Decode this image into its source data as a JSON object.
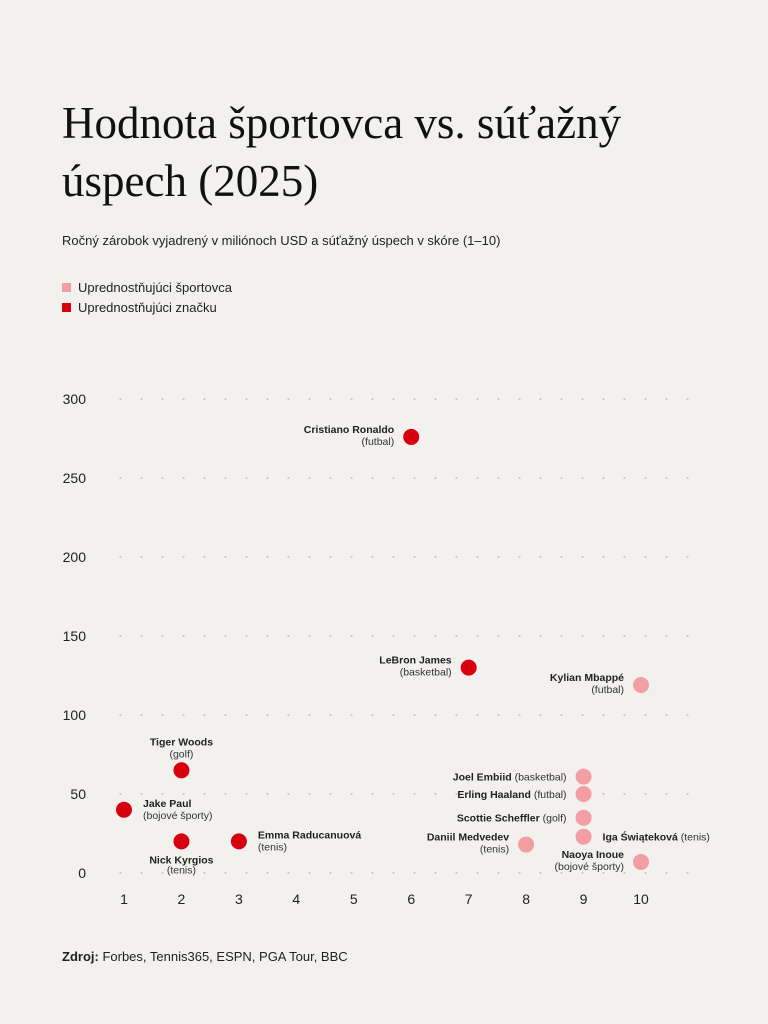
{
  "title": "Hodnota športovca vs. súťažný úspech (2025)",
  "subtitle": "Ročný zárobok vyjadrený v miliónoch USD a súťažný úspech v skóre (1–10)",
  "source": {
    "label": "Zdroj:",
    "text": "Forbes, Tennis365, ESPN, PGA Tour, BBC"
  },
  "colors": {
    "athlete": "#f29ea3",
    "brand": "#d6000f",
    "background": "#f2f1ed"
  },
  "chart_data": {
    "type": "scatter",
    "title": "Hodnota športovca vs. súťažný úspech (2025)",
    "xlabel": "",
    "ylabel": "",
    "xlim": [
      1,
      10
    ],
    "ylim": [
      0,
      300
    ],
    "xticks": [
      1,
      2,
      3,
      4,
      5,
      6,
      7,
      8,
      9,
      10
    ],
    "yticks": [
      0,
      50,
      100,
      150,
      200,
      250,
      300
    ],
    "grid": "dotted horizontal",
    "legend_placement": "top-left",
    "legend": [
      {
        "key": "athlete",
        "label": "Uprednostňujúci športovca"
      },
      {
        "key": "brand",
        "label": "Uprednostňujúci značku"
      }
    ],
    "points": [
      {
        "name": "Cristiano Ronaldo",
        "sport": "(futbal)",
        "x": 6,
        "y": 276,
        "group": "brand",
        "label": "left"
      },
      {
        "name": "LeBron James",
        "sport": "(basketbal)",
        "x": 7,
        "y": 130,
        "group": "brand",
        "label": "left"
      },
      {
        "name": "Kylian Mbappé",
        "sport": "(futbal)",
        "x": 10,
        "y": 119,
        "group": "athlete",
        "label": "left"
      },
      {
        "name": "Tiger Woods",
        "sport": "(golf)",
        "x": 2,
        "y": 65,
        "group": "brand",
        "label": "above"
      },
      {
        "name": "Jake Paul",
        "sport": "(bojové športy)",
        "x": 1,
        "y": 40,
        "group": "brand",
        "label": "right"
      },
      {
        "name": "Nick Kyrgios",
        "sport": "(tenis)",
        "x": 2,
        "y": 20,
        "group": "brand",
        "label": "below"
      },
      {
        "name": "Emma Raducanuová",
        "sport": "(tenis)",
        "x": 3,
        "y": 20,
        "group": "brand",
        "label": "right"
      },
      {
        "name": "Joel Embiid",
        "sport": "(basketbal)",
        "x": 9,
        "y": 61,
        "group": "athlete",
        "label": "left-inline"
      },
      {
        "name": "Erling Haaland",
        "sport": "(futbal)",
        "x": 9,
        "y": 50,
        "group": "athlete",
        "label": "left-inline"
      },
      {
        "name": "Scottie Scheffler",
        "sport": "(golf)",
        "x": 9,
        "y": 35,
        "group": "athlete",
        "label": "left-inline"
      },
      {
        "name": "Iga Świąteková",
        "sport": "(tenis)",
        "x": 9,
        "y": 23,
        "group": "athlete",
        "label": "right-inline"
      },
      {
        "name": "Daniil Medvedev",
        "sport": "(tenis)",
        "x": 8,
        "y": 18,
        "group": "athlete",
        "label": "left"
      },
      {
        "name": "Naoya Inoue",
        "sport": "(bojové športy)",
        "x": 10,
        "y": 7,
        "group": "athlete",
        "label": "left"
      }
    ]
  }
}
